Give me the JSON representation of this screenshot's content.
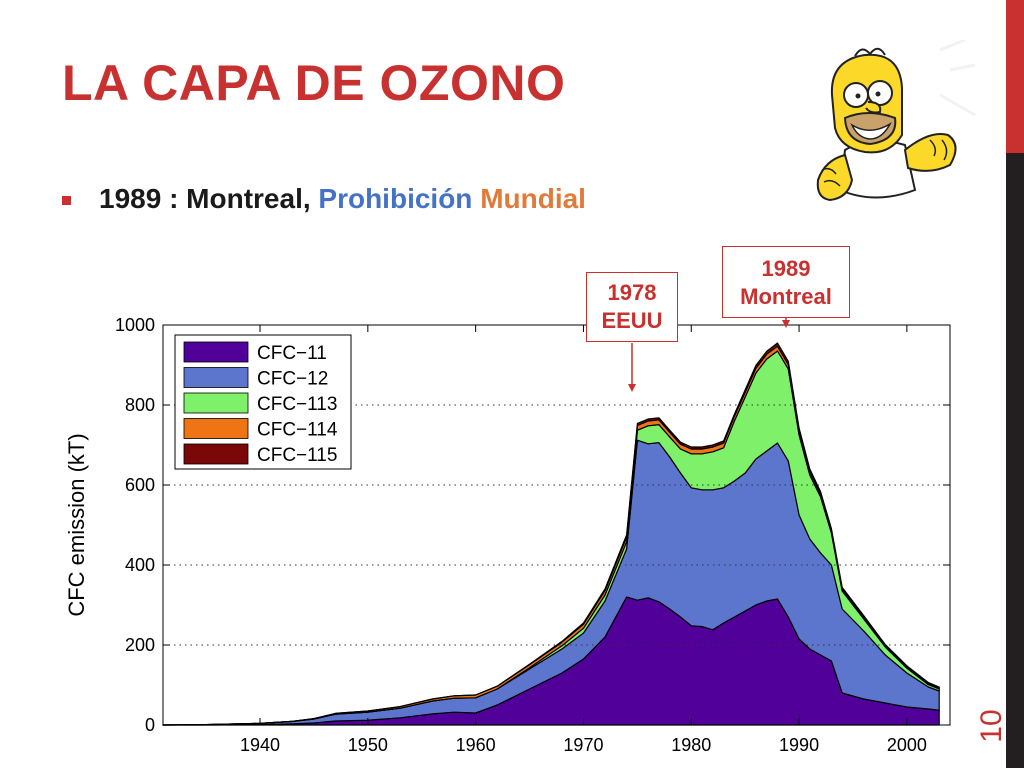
{
  "slide": {
    "title": "LA CAPA DE OZONO",
    "bullet": {
      "part1": "1989 : Montreal, ",
      "part2": "Prohibición ",
      "part3": "Mundial"
    },
    "page_number": "10",
    "accent_color": "#c8312f",
    "sidebar_dark_color": "#231f20",
    "illustration": "cartoon-character-fists-illustration"
  },
  "callouts": [
    {
      "line1": "1978",
      "line2": "EEUU"
    },
    {
      "line1": "1989",
      "line2": "Montreal"
    }
  ],
  "chart_data": {
    "type": "area",
    "stacked": true,
    "xlabel": "",
    "ylabel": "CFC emission (kT)",
    "xlim": [
      1931,
      2004
    ],
    "ylim": [
      0,
      1000
    ],
    "xticks": [
      1940,
      1950,
      1960,
      1970,
      1980,
      1990,
      2000
    ],
    "yticks": [
      0,
      200,
      400,
      600,
      800,
      1000
    ],
    "grid": "horizontal-dotted",
    "legend_position": "top-left",
    "x": [
      1931,
      1935,
      1940,
      1943,
      1945,
      1947,
      1950,
      1953,
      1956,
      1958,
      1960,
      1962,
      1965,
      1968,
      1970,
      1972,
      1974,
      1975,
      1976,
      1977,
      1978,
      1979,
      1980,
      1981,
      1982,
      1983,
      1984,
      1985,
      1986,
      1987,
      1988,
      1989,
      1990,
      1991,
      1992,
      1993,
      1994,
      1996,
      1998,
      2000,
      2002,
      2003
    ],
    "series": [
      {
        "name": "CFC−11",
        "color": "#51009a",
        "values": [
          0,
          0,
          1,
          3,
          5,
          10,
          12,
          18,
          28,
          32,
          30,
          50,
          90,
          130,
          165,
          220,
          320,
          312,
          318,
          308,
          290,
          270,
          248,
          246,
          238,
          255,
          270,
          285,
          300,
          310,
          315,
          270,
          215,
          190,
          175,
          160,
          80,
          65,
          55,
          45,
          40,
          37
        ]
      },
      {
        "name": "CFC−12",
        "color": "#5b76cc",
        "values": [
          0,
          1,
          3,
          6,
          10,
          17,
          20,
          24,
          32,
          35,
          38,
          40,
          50,
          60,
          65,
          90,
          120,
          400,
          385,
          398,
          380,
          360,
          345,
          342,
          350,
          338,
          340,
          345,
          365,
          375,
          390,
          390,
          310,
          275,
          255,
          240,
          210,
          170,
          120,
          85,
          55,
          48
        ]
      },
      {
        "name": "CFC−113",
        "color": "#7ef06a",
        "values": [
          0,
          0,
          0,
          0,
          0,
          0,
          0,
          0,
          0,
          0,
          0,
          0,
          3,
          8,
          12,
          15,
          18,
          25,
          45,
          45,
          50,
          60,
          85,
          90,
          95,
          100,
          150,
          190,
          215,
          230,
          230,
          230,
          200,
          160,
          140,
          80,
          45,
          30,
          20,
          12,
          6,
          5
        ]
      },
      {
        "name": "CFC−114",
        "color": "#ef7414",
        "values": [
          0,
          0,
          0,
          0,
          1,
          2,
          3,
          4,
          5,
          6,
          7,
          7,
          8,
          9,
          10,
          11,
          12,
          12,
          12,
          12,
          12,
          12,
          12,
          12,
          12,
          12,
          12,
          12,
          12,
          12,
          12,
          11,
          10,
          8,
          7,
          6,
          5,
          4,
          3,
          3,
          2,
          2
        ]
      },
      {
        "name": "CFC−115",
        "color": "#7b0808",
        "values": [
          0,
          0,
          0,
          0,
          0,
          0,
          0,
          0,
          0,
          0,
          0,
          0,
          1,
          2,
          3,
          4,
          5,
          5,
          5,
          5,
          5,
          5,
          5,
          5,
          5,
          5,
          5,
          6,
          7,
          7,
          8,
          8,
          7,
          7,
          6,
          5,
          4,
          4,
          3,
          3,
          3,
          3
        ]
      }
    ]
  }
}
